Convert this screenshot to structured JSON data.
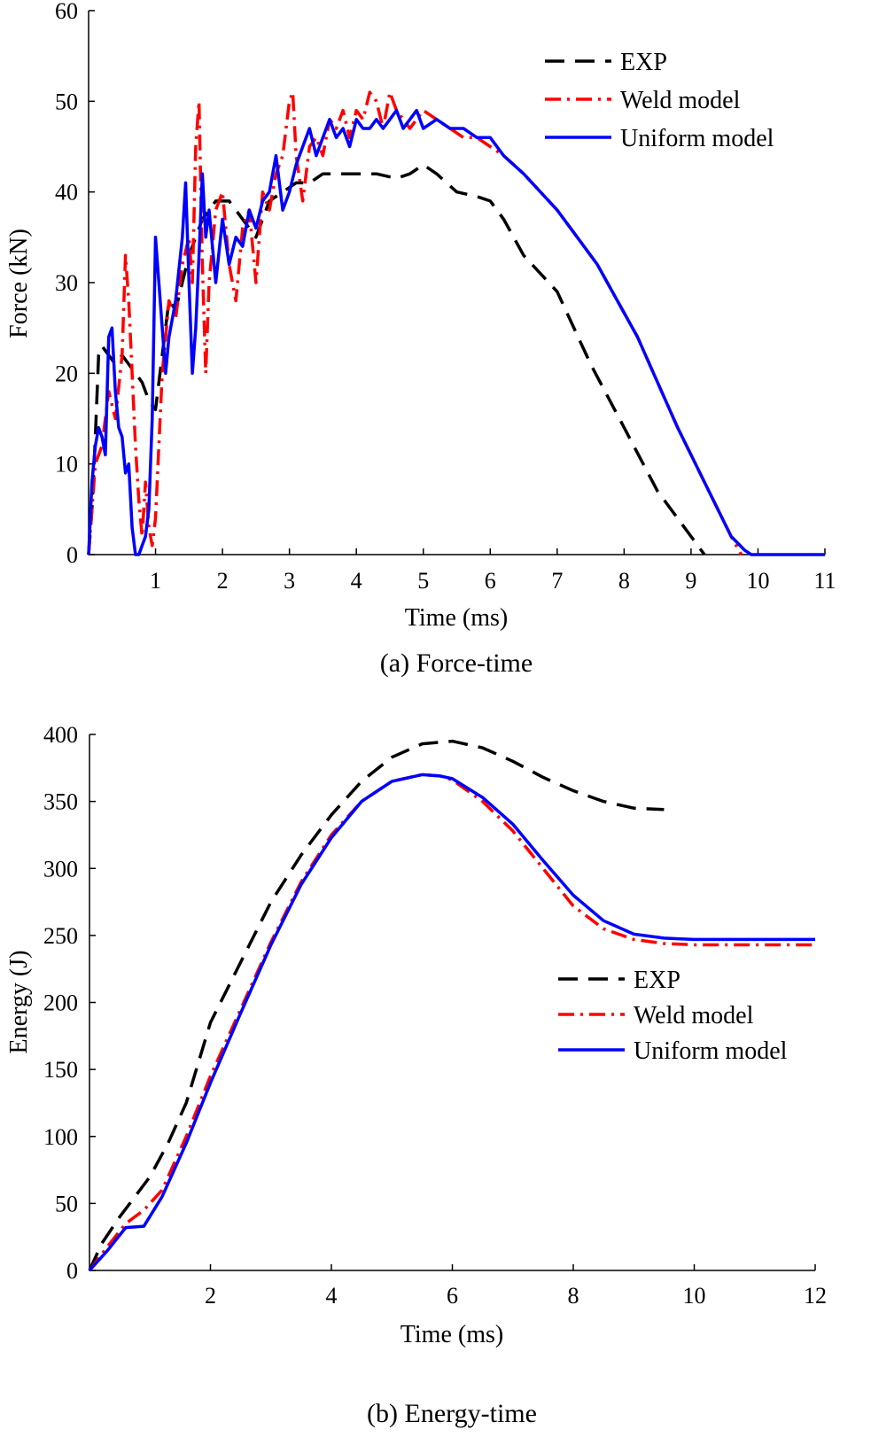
{
  "chart_data": [
    {
      "type": "line",
      "caption": "(a) Force-time",
      "xlabel": "Time (ms)",
      "ylabel": "Force (kN)",
      "xlim": [
        0,
        11
      ],
      "ylim": [
        0,
        60
      ],
      "xticks": [
        1,
        2,
        3,
        4,
        5,
        6,
        7,
        8,
        9,
        10,
        11
      ],
      "yticks": [
        0,
        10,
        20,
        30,
        40,
        50,
        60
      ],
      "legend_position": "top-right",
      "series": [
        {
          "name": "EXP",
          "color": "#000000",
          "style": "dashed",
          "x": [
            0.0,
            0.05,
            0.1,
            0.15,
            0.2,
            0.3,
            0.4,
            0.5,
            0.6,
            0.7,
            0.8,
            0.9,
            1.0,
            1.1,
            1.2,
            1.3,
            1.5,
            1.7,
            1.9,
            2.1,
            2.3,
            2.5,
            2.7,
            2.9,
            3.1,
            3.3,
            3.5,
            3.7,
            4.0,
            4.3,
            4.6,
            4.8,
            5.0,
            5.2,
            5.5,
            5.8,
            6.0,
            6.2,
            6.5,
            7.0,
            7.5,
            8.0,
            8.5,
            9.0,
            9.2
          ],
          "y": [
            0,
            5,
            13,
            22,
            23,
            22,
            21,
            22,
            21,
            20,
            19,
            17,
            16,
            22,
            28,
            27,
            33,
            37,
            39,
            39,
            37,
            35,
            39,
            40,
            41,
            41,
            42,
            42,
            42,
            42,
            41.5,
            42,
            43,
            42,
            40,
            39.5,
            39,
            37,
            33,
            29,
            21,
            14,
            7,
            2,
            0
          ]
        },
        {
          "name": "Weld model",
          "color": "#ff0000",
          "style": "dashdot",
          "x": [
            0.0,
            0.1,
            0.2,
            0.3,
            0.4,
            0.5,
            0.55,
            0.6,
            0.65,
            0.7,
            0.75,
            0.8,
            0.85,
            0.9,
            0.95,
            1.0,
            1.05,
            1.1,
            1.15,
            1.2,
            1.3,
            1.4,
            1.5,
            1.55,
            1.6,
            1.65,
            1.7,
            1.75,
            1.8,
            1.9,
            2.0,
            2.1,
            2.2,
            2.3,
            2.4,
            2.5,
            2.6,
            2.7,
            2.8,
            2.9,
            3.0,
            3.05,
            3.1,
            3.2,
            3.3,
            3.4,
            3.5,
            3.6,
            3.7,
            3.8,
            3.9,
            4.0,
            4.1,
            4.2,
            4.3,
            4.4,
            4.5,
            4.6,
            4.7,
            4.8,
            5.0,
            5.2,
            5.4,
            5.6,
            5.8,
            6.0,
            6.2,
            6.5,
            7.0,
            7.3,
            7.6,
            7.9,
            8.2,
            8.5,
            8.8,
            9.0,
            9.2,
            9.4,
            9.6,
            9.75
          ],
          "y": [
            0,
            10,
            12,
            18,
            15,
            22,
            33,
            28,
            20,
            12,
            6,
            2,
            8,
            3,
            1,
            4,
            12,
            20,
            24,
            28,
            26,
            32,
            35,
            30,
            45,
            50,
            32,
            20,
            30,
            38,
            40,
            32,
            28,
            36,
            38,
            30,
            40,
            38,
            42,
            44,
            50,
            51,
            44,
            39,
            45,
            46,
            44,
            48,
            47,
            49,
            46,
            49,
            48,
            51,
            50,
            47,
            51,
            49,
            48,
            47,
            49,
            48,
            47,
            46,
            46,
            45,
            44,
            42,
            38,
            35,
            32,
            28,
            24,
            19,
            14,
            11,
            8,
            5,
            2,
            0
          ]
        },
        {
          "name": "Uniform model",
          "color": "#0000ff",
          "style": "solid",
          "x": [
            0.0,
            0.05,
            0.1,
            0.15,
            0.2,
            0.25,
            0.3,
            0.35,
            0.4,
            0.45,
            0.5,
            0.55,
            0.6,
            0.65,
            0.7,
            0.75,
            0.8,
            0.85,
            0.9,
            0.95,
            1.0,
            1.05,
            1.1,
            1.15,
            1.2,
            1.3,
            1.4,
            1.45,
            1.5,
            1.55,
            1.6,
            1.65,
            1.7,
            1.75,
            1.8,
            1.9,
            2.0,
            2.1,
            2.2,
            2.3,
            2.4,
            2.5,
            2.6,
            2.7,
            2.8,
            2.9,
            3.0,
            3.1,
            3.2,
            3.3,
            3.4,
            3.5,
            3.6,
            3.7,
            3.8,
            3.9,
            4.0,
            4.1,
            4.2,
            4.3,
            4.4,
            4.5,
            4.6,
            4.7,
            4.8,
            4.9,
            5.0,
            5.2,
            5.4,
            5.6,
            5.8,
            6.0,
            6.2,
            6.5,
            7.0,
            7.3,
            7.6,
            7.9,
            8.2,
            8.5,
            8.8,
            9.0,
            9.2,
            9.4,
            9.6,
            9.8,
            9.9,
            10.0,
            11.0
          ],
          "y": [
            0,
            8,
            12,
            14,
            13,
            11,
            24,
            25,
            18,
            14,
            13,
            9,
            10,
            3,
            0,
            0,
            1,
            2,
            5,
            15,
            35,
            30,
            25,
            20,
            24,
            28,
            35,
            41,
            30,
            20,
            25,
            33,
            42,
            35,
            38,
            30,
            37,
            32,
            35,
            34,
            38,
            36,
            39,
            40,
            44,
            38,
            40,
            43,
            45,
            47,
            44,
            46,
            48,
            46,
            47,
            45,
            48,
            47,
            47,
            48,
            47,
            48,
            49,
            47,
            48,
            49,
            47,
            48,
            47,
            47,
            46,
            46,
            44,
            42,
            38,
            35,
            32,
            28,
            24,
            19,
            14,
            11,
            8,
            5,
            2,
            0.5,
            0,
            0,
            0
          ]
        }
      ]
    },
    {
      "type": "line",
      "caption": "(b) Energy-time",
      "xlabel": "Time (ms)",
      "ylabel": "Energy (J)",
      "xlim": [
        0,
        12
      ],
      "ylim": [
        0,
        400
      ],
      "xticks": [
        2,
        4,
        6,
        8,
        10,
        12
      ],
      "yticks": [
        0,
        50,
        100,
        150,
        200,
        250,
        300,
        350,
        400
      ],
      "legend_position": "center-right",
      "series": [
        {
          "name": "EXP",
          "color": "#000000",
          "style": "dashed",
          "x": [
            0.0,
            0.2,
            0.5,
            0.8,
            1.0,
            1.3,
            1.6,
            2.0,
            2.5,
            3.0,
            3.5,
            4.0,
            4.5,
            5.0,
            5.5,
            6.0,
            6.5,
            7.0,
            7.5,
            8.0,
            8.5,
            9.0,
            9.5
          ],
          "y": [
            0,
            20,
            40,
            58,
            70,
            95,
            125,
            185,
            230,
            275,
            310,
            340,
            365,
            383,
            393,
            395,
            390,
            380,
            368,
            358,
            350,
            345,
            344
          ]
        },
        {
          "name": "Weld model",
          "color": "#ff0000",
          "style": "dashdot",
          "x": [
            0.0,
            0.3,
            0.6,
            0.9,
            1.2,
            1.6,
            2.0,
            2.5,
            3.0,
            3.5,
            4.0,
            4.5,
            5.0,
            5.5,
            5.8,
            6.0,
            6.5,
            7.0,
            7.5,
            8.0,
            8.5,
            9.0,
            9.5,
            10.0,
            11.0,
            12.0
          ],
          "y": [
            0,
            18,
            35,
            45,
            60,
            100,
            145,
            195,
            245,
            290,
            325,
            350,
            365,
            370,
            369,
            366,
            350,
            328,
            300,
            272,
            255,
            247,
            244,
            243,
            243,
            243
          ]
        },
        {
          "name": "Uniform model",
          "color": "#0000ff",
          "style": "solid",
          "x": [
            0.0,
            0.3,
            0.6,
            0.9,
            1.2,
            1.6,
            2.0,
            2.5,
            3.0,
            3.5,
            4.0,
            4.5,
            5.0,
            5.5,
            5.8,
            6.0,
            6.5,
            7.0,
            7.5,
            8.0,
            8.5,
            9.0,
            9.5,
            10.0,
            11.0,
            12.0
          ],
          "y": [
            0,
            15,
            32,
            33,
            55,
            95,
            140,
            192,
            243,
            288,
            323,
            350,
            365,
            370,
            369,
            367,
            353,
            333,
            306,
            280,
            261,
            251,
            248,
            247,
            247,
            247
          ]
        }
      ]
    }
  ]
}
